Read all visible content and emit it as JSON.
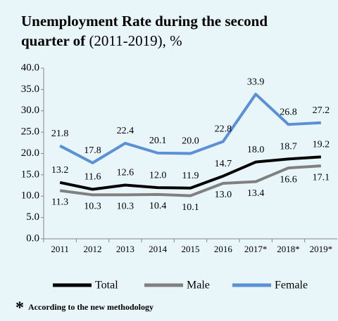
{
  "chart_data": {
    "type": "line",
    "title_parts": [
      "Unemployment Rate during the second",
      "quarter of",
      "(2011-2019), %"
    ],
    "categories": [
      "2011",
      "2012",
      "2013",
      "2014",
      "2015",
      "2016",
      "2017*",
      "2018*",
      "2019*"
    ],
    "series": [
      {
        "name": "Total",
        "color": "#000000",
        "values": [
          13.2,
          11.6,
          12.6,
          12.0,
          11.9,
          14.7,
          18.0,
          18.7,
          19.2
        ],
        "value_labels": [
          "13.2",
          "11.6",
          "12.6",
          "12.0",
          "11.9",
          "14.7",
          "18.0",
          "18.7",
          "19.2"
        ]
      },
      {
        "name": "Male",
        "color": "#808080",
        "values": [
          11.3,
          10.3,
          10.3,
          10.4,
          10.1,
          13.0,
          13.4,
          16.6,
          17.1
        ],
        "value_labels": [
          "11.3",
          "10.3",
          "10.3",
          "10.4",
          "10.1",
          "13.0",
          "13.4",
          "16.6",
          "17.1"
        ]
      },
      {
        "name": "Female",
        "color": "#5b8fd6",
        "values": [
          21.8,
          17.8,
          22.4,
          20.1,
          20.0,
          22.8,
          33.9,
          26.8,
          27.2
        ],
        "value_labels": [
          "21.8",
          "17.8",
          "22.4",
          "20.1",
          "20.0",
          "22.8",
          "33.9",
          "26.8",
          "27.2"
        ]
      }
    ],
    "ylim": [
      0,
      40
    ],
    "yticks": [
      {
        "value": 0,
        "label": "0.0"
      },
      {
        "value": 5,
        "label": "5.0"
      },
      {
        "value": 10,
        "label": "10.0"
      },
      {
        "value": 15,
        "label": "15.0"
      },
      {
        "value": 20,
        "label": "20.0"
      },
      {
        "value": 25,
        "label": "25.0"
      },
      {
        "value": 30,
        "label": "30.0"
      },
      {
        "value": 35,
        "label": "35.0"
      },
      {
        "value": 40,
        "label": "40.0"
      }
    ],
    "footnote_mark": "*",
    "footnote": "According to the new methodology"
  }
}
